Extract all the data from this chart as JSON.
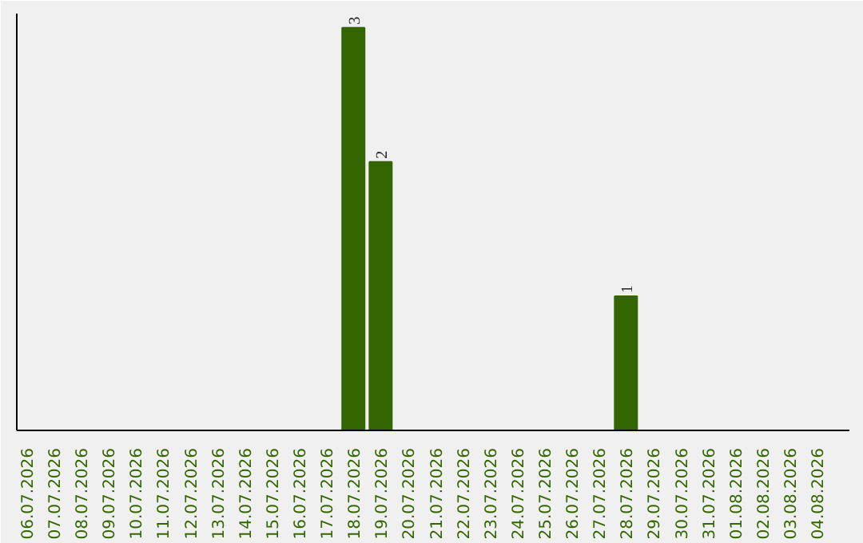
{
  "chart_data": {
    "type": "bar",
    "categories": [
      "06.07.2026",
      "07.07.2026",
      "08.07.2026",
      "09.07.2026",
      "10.07.2026",
      "11.07.2026",
      "12.07.2026",
      "13.07.2026",
      "14.07.2026",
      "15.07.2026",
      "16.07.2026",
      "17.07.2026",
      "18.07.2026",
      "19.07.2026",
      "20.07.2026",
      "21.07.2026",
      "22.07.2026",
      "23.07.2026",
      "24.07.2026",
      "25.07.2026",
      "26.07.2026",
      "27.07.2026",
      "28.07.2026",
      "29.07.2026",
      "30.07.2026",
      "31.07.2026",
      "01.08.2026",
      "02.08.2026",
      "03.08.2026",
      "04.08.2026"
    ],
    "values": [
      null,
      null,
      null,
      null,
      null,
      null,
      null,
      null,
      null,
      null,
      null,
      null,
      3,
      2,
      null,
      null,
      null,
      null,
      null,
      null,
      null,
      null,
      1,
      null,
      null,
      null,
      null,
      null,
      null,
      null
    ],
    "color": "#336600",
    "data_labels": true,
    "grid": false
  }
}
